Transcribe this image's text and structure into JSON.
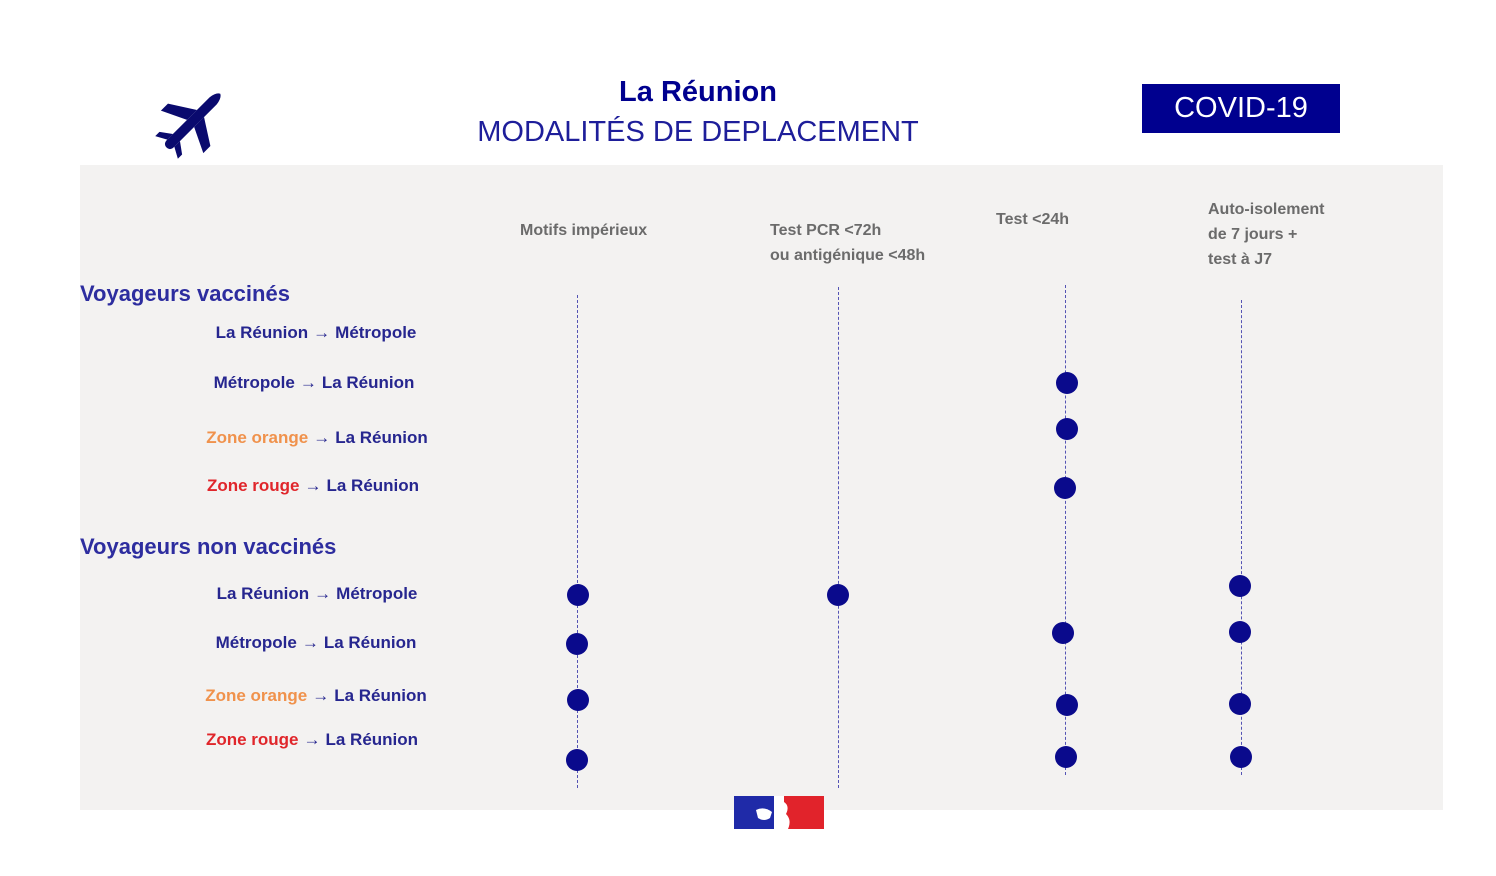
{
  "header": {
    "title": "La Réunion",
    "subtitle": "MODALITÉS DE DEPLACEMENT",
    "badge": "COVID-19",
    "plane_icon": "airplane-icon"
  },
  "columns": [
    {
      "label_lines": [
        "Motifs impérieux"
      ]
    },
    {
      "label_lines": [
        "Test PCR <72h",
        "ou antigénique <48h"
      ]
    },
    {
      "label_lines": [
        "Test <24h"
      ]
    },
    {
      "label_lines": [
        "Auto-isolement",
        "de 7 jours  +",
        "test à J7"
      ]
    }
  ],
  "arrow": "→",
  "groups": [
    {
      "title": "Voyageurs vaccinés",
      "rows": [
        {
          "from": "La Réunion",
          "to": "Métropole",
          "from_color": "#26268f",
          "checks": [
            false,
            false,
            false,
            false
          ]
        },
        {
          "from": "Métropole",
          "to": "La Réunion",
          "from_color": "#26268f",
          "checks": [
            false,
            false,
            true,
            false
          ]
        },
        {
          "from": "Zone orange",
          "to": "La Réunion",
          "from_color": "#f0924c",
          "checks": [
            false,
            false,
            true,
            false
          ]
        },
        {
          "from": "Zone rouge",
          "to": "La Réunion",
          "from_color": "#e0262b",
          "checks": [
            false,
            false,
            true,
            false
          ]
        }
      ]
    },
    {
      "title": "Voyageurs non vaccinés",
      "rows": [
        {
          "from": "La Réunion",
          "to": "Métropole",
          "from_color": "#26268f",
          "checks": [
            true,
            true,
            false,
            true
          ]
        },
        {
          "from": "Métropole",
          "to": "La Réunion",
          "from_color": "#26268f",
          "checks": [
            true,
            false,
            true,
            true
          ]
        },
        {
          "from": "Zone orange",
          "to": "La Réunion",
          "from_color": "#f0924c",
          "checks": [
            true,
            false,
            true,
            true
          ]
        },
        {
          "from": "Zone rouge",
          "to": "La Réunion",
          "from_color": "#e0262b",
          "checks": [
            true,
            false,
            true,
            true
          ]
        }
      ]
    }
  ],
  "colors": {
    "navy": "#00008f",
    "panel": "#f3f2f1",
    "orange": "#f0924c",
    "red": "#e0262b"
  },
  "footer": {
    "logo_icon": "marianne-flag-logo"
  }
}
